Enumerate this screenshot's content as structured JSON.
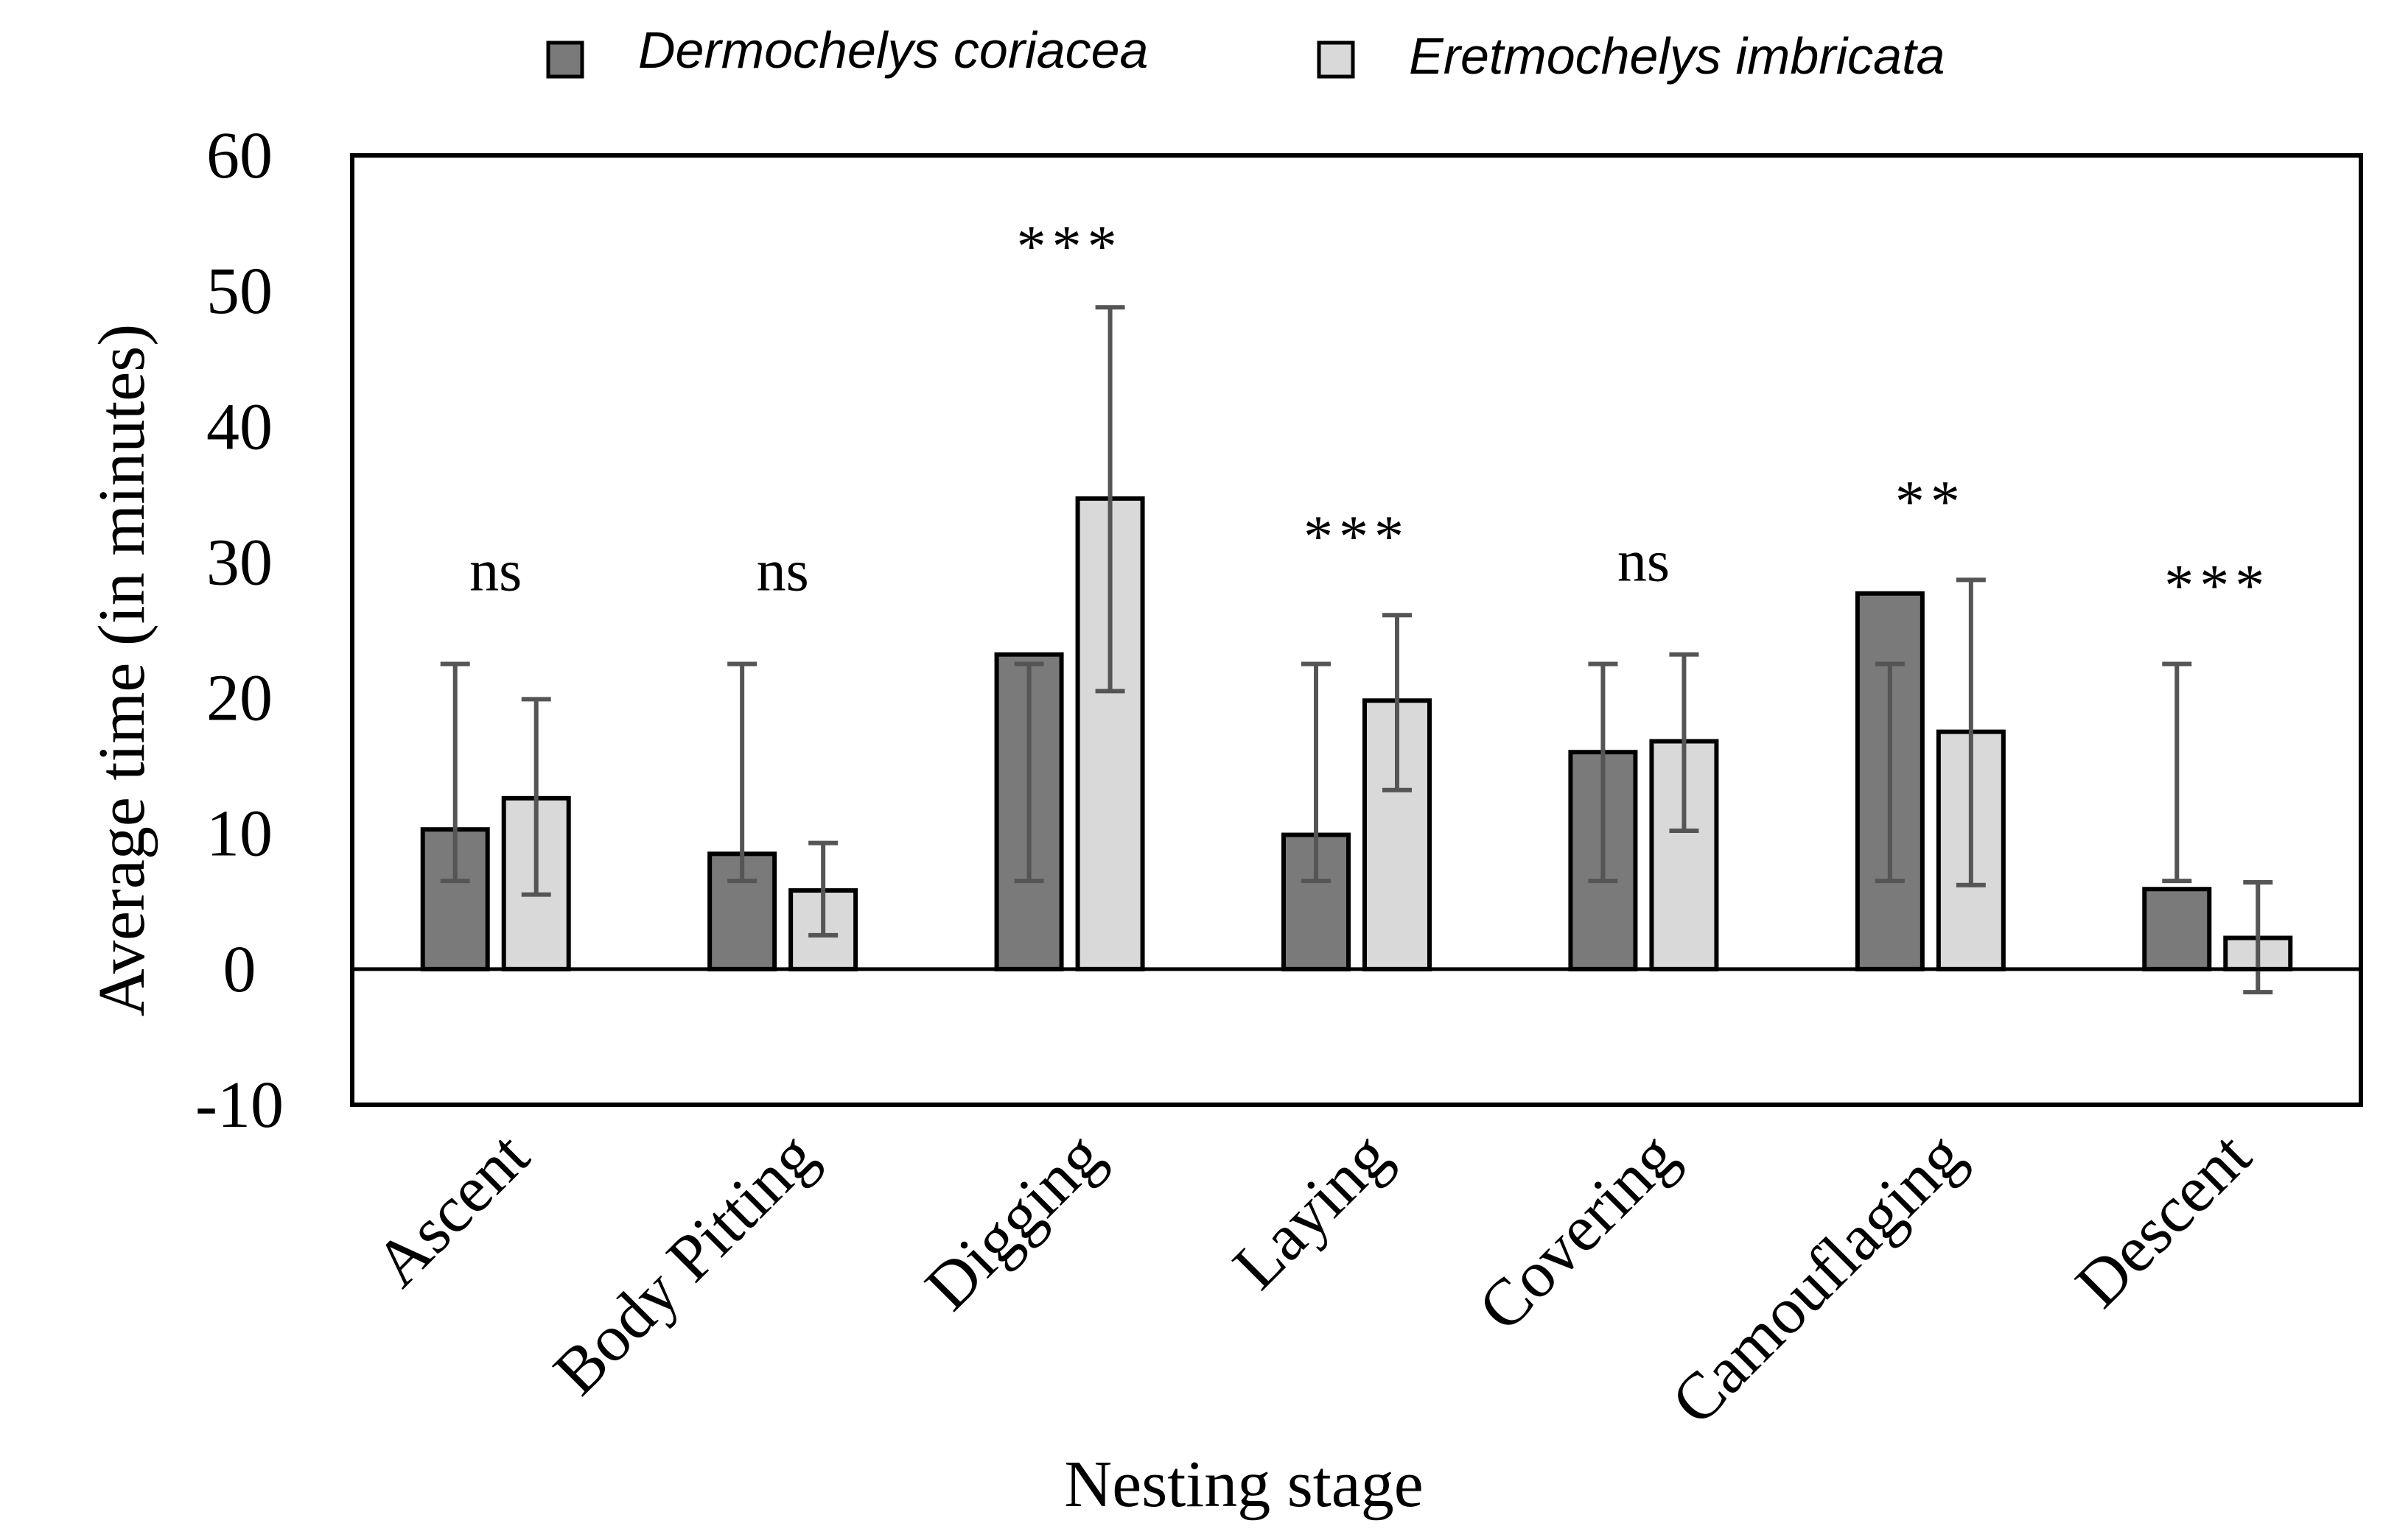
{
  "chart_data": {
    "type": "bar",
    "xlabel": "Nesting stage",
    "ylabel": "Average time (in minutes)",
    "ylim": [
      -10,
      60
    ],
    "yticks": [
      -10,
      0,
      10,
      20,
      30,
      40,
      50,
      60
    ],
    "ytick_labels": [
      "-10",
      "0",
      "10",
      "20",
      "30",
      "40",
      "50",
      "60"
    ],
    "legend_position": "top-center",
    "categories": [
      "Ascent",
      "Body Pitting",
      "Digging",
      "Laying",
      "Covering",
      "Camouflaging",
      "Descent"
    ],
    "series": [
      {
        "name": "Dermochelys coriacea",
        "color": "#7a7a7a",
        "values": [
          10.3,
          8.5,
          23.2,
          9.9,
          16.0,
          27.7,
          5.9
        ],
        "error_low": [
          6.5,
          6.5,
          6.5,
          6.5,
          6.5,
          6.5,
          6.5
        ],
        "error_high": [
          22.5,
          22.5,
          22.5,
          22.5,
          22.5,
          22.5,
          22.5
        ]
      },
      {
        "name": "Eretmochelys imbricata",
        "color": "#d9d9d9",
        "values": [
          12.6,
          5.8,
          34.7,
          19.8,
          16.8,
          17.5,
          2.3
        ],
        "error_low": [
          5.5,
          2.5,
          20.5,
          13.2,
          10.2,
          6.2,
          -1.7
        ],
        "error_high": [
          19.9,
          9.3,
          48.8,
          26.1,
          23.2,
          28.7,
          6.4
        ]
      }
    ],
    "significance": [
      "ns",
      "ns",
      "***",
      "***",
      "ns",
      "**",
      "***"
    ]
  }
}
